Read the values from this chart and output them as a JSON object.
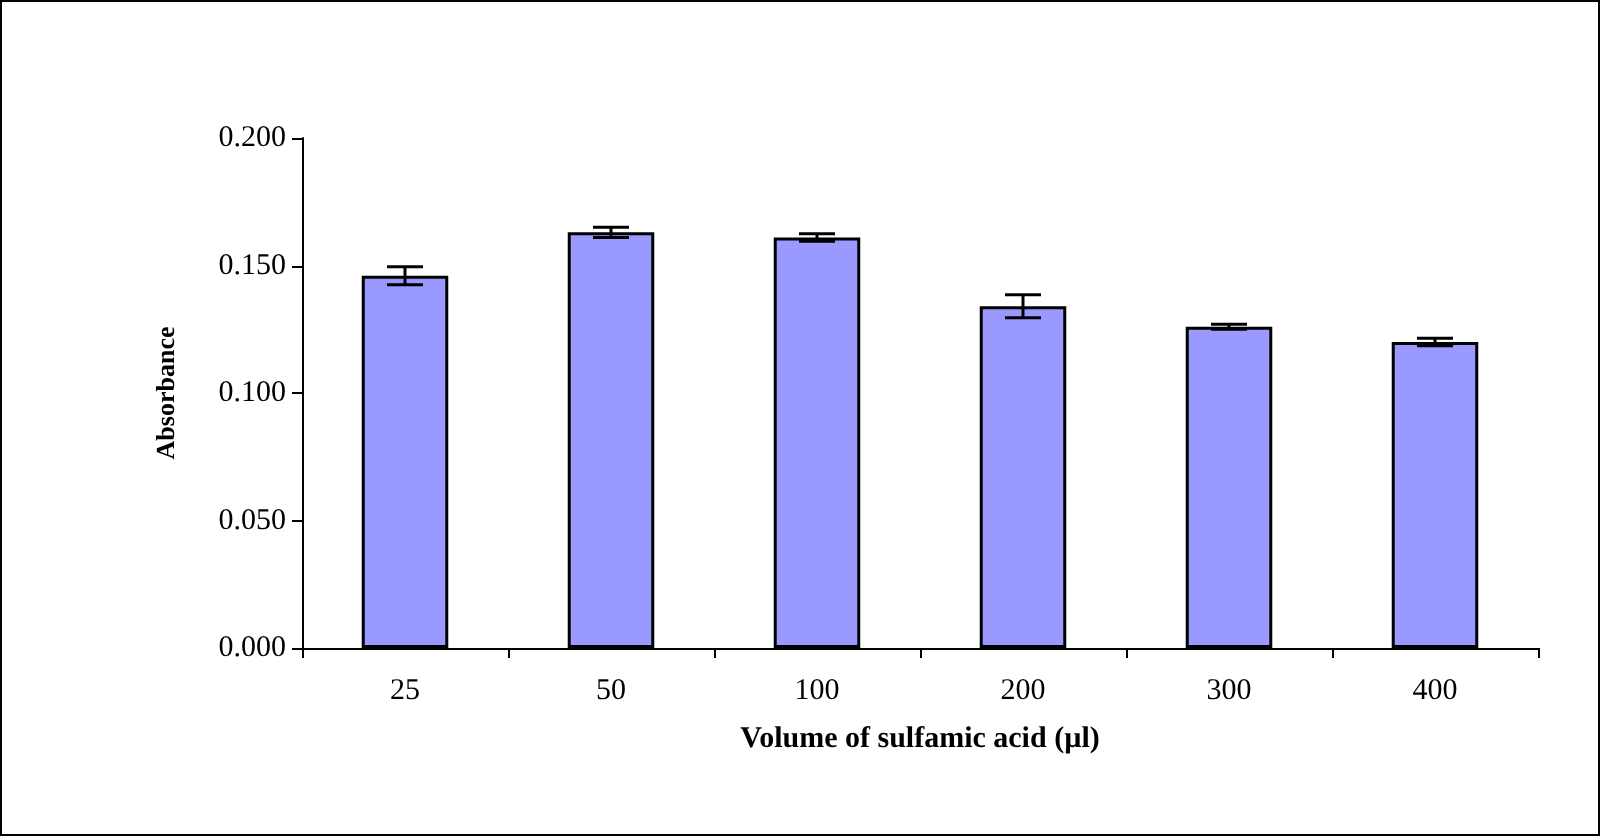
{
  "chart_data": {
    "type": "bar",
    "xlabel": "Volume of sulfamic acid (µl)",
    "ylabel": "Absorbance",
    "categories": [
      "25",
      "50",
      "100",
      "200",
      "300",
      "400"
    ],
    "values": [
      0.146,
      0.163,
      0.161,
      0.134,
      0.126,
      0.12
    ],
    "errors": [
      0.0035,
      0.002,
      0.0015,
      0.0045,
      0.001,
      0.0015
    ],
    "color": "#9999ff",
    "ylim": [
      0,
      0.2
    ],
    "yticks": [
      {
        "value": 0,
        "label": "0.000"
      },
      {
        "value": 0.05,
        "label": "0.050"
      },
      {
        "value": 0.1,
        "label": "0.100"
      },
      {
        "value": 0.15,
        "label": "0.150"
      },
      {
        "value": 0.2,
        "label": "0.200"
      }
    ],
    "grid": false
  }
}
